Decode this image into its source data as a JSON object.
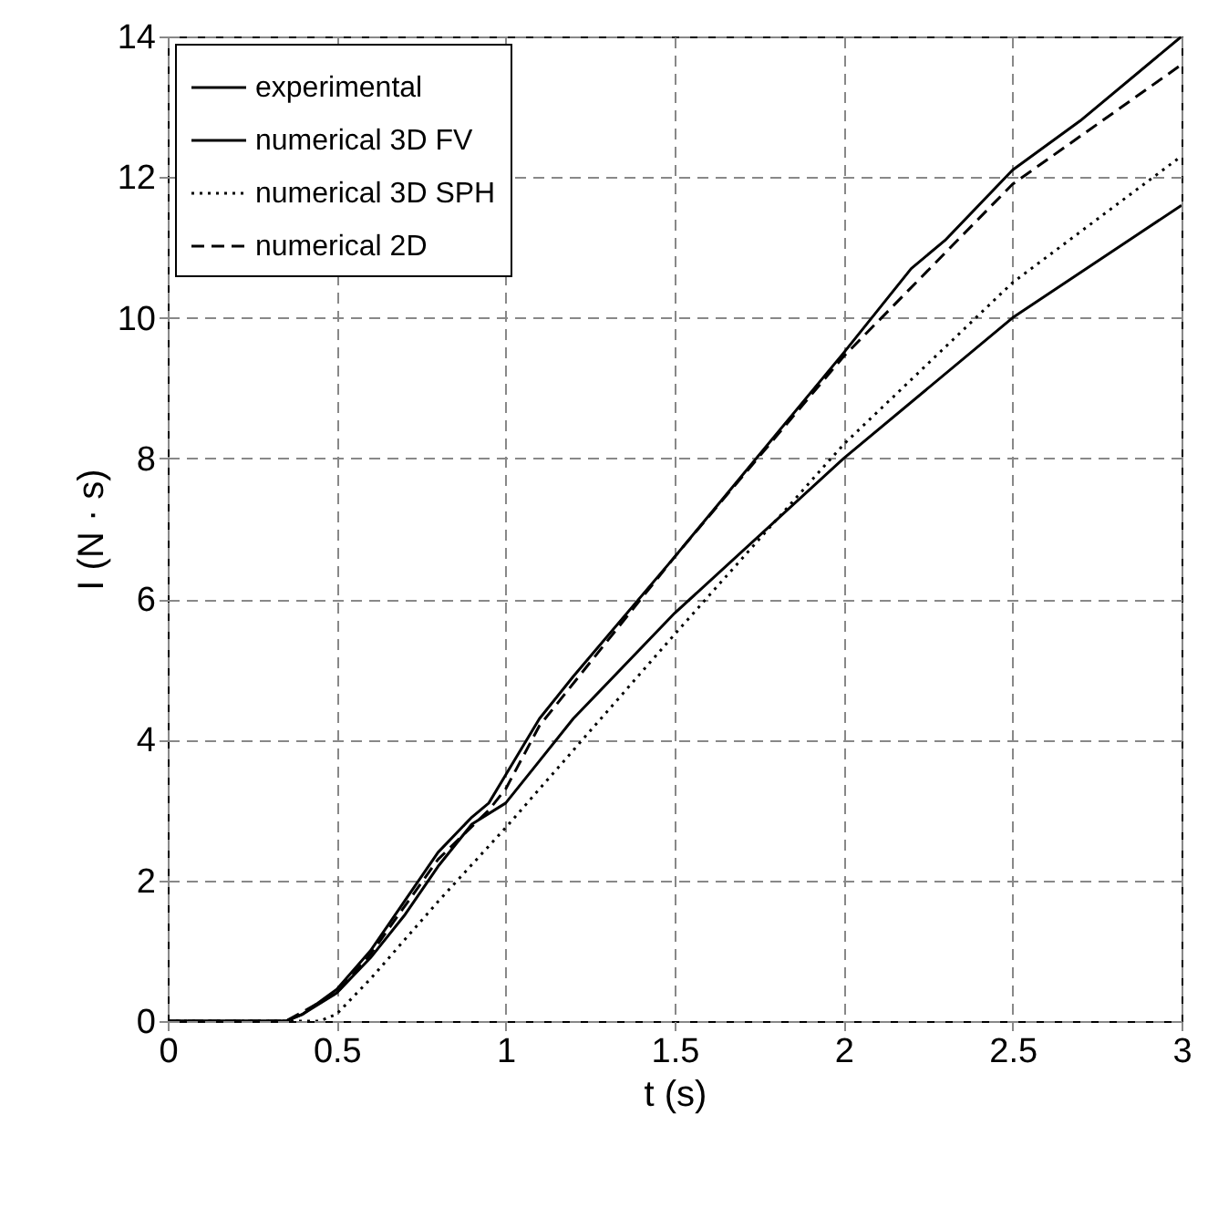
{
  "chart_data": {
    "type": "line",
    "xlabel": "t (s)",
    "ylabel": "I (N · s)",
    "xlim": [
      0,
      3
    ],
    "xticks": [
      0,
      0.5,
      1,
      1.5,
      2,
      2.5,
      3
    ],
    "ylim": [
      0,
      14
    ],
    "yticks": [
      0,
      2,
      4,
      6,
      8,
      10,
      12,
      14
    ],
    "grid": true,
    "legend": "top left",
    "series": [
      {
        "name": "experimental",
        "color": "#000000",
        "line_style": "solid",
        "x": [
          0,
          0.35,
          0.4,
          0.5,
          0.6,
          0.7,
          0.8,
          0.9,
          1.0,
          1.1,
          1.2,
          1.5,
          2.0,
          2.5,
          3.0
        ],
        "values": [
          0,
          0,
          0.1,
          0.4,
          0.9,
          1.5,
          2.2,
          2.8,
          3.1,
          3.7,
          4.3,
          5.8,
          8.0,
          10.0,
          11.6
        ]
      },
      {
        "name": "numerical 3D FV",
        "color": "#000000",
        "line_style": "solid",
        "x": [
          0,
          0.35,
          0.4,
          0.5,
          0.6,
          0.7,
          0.8,
          0.9,
          0.95,
          1.0,
          1.1,
          1.2,
          1.5,
          2.0,
          2.1,
          2.2,
          2.3,
          2.5,
          2.7,
          3.0
        ],
        "values": [
          0,
          0,
          0.1,
          0.45,
          1.0,
          1.7,
          2.4,
          2.9,
          3.1,
          3.5,
          4.3,
          4.9,
          6.6,
          9.5,
          10.1,
          10.7,
          11.1,
          12.1,
          12.8,
          14.0
        ]
      },
      {
        "name": "numerical 3D SPH",
        "color": "#000000",
        "line_style": "dotted",
        "x": [
          0,
          0.45,
          0.5,
          0.6,
          0.8,
          1.0,
          1.5,
          2.0,
          2.5,
          3.0
        ],
        "values": [
          0,
          0,
          0.1,
          0.6,
          1.7,
          2.75,
          5.5,
          8.2,
          10.5,
          12.3
        ]
      },
      {
        "name": "numerical 2D",
        "color": "#000000",
        "line_style": "dashed",
        "x": [
          0,
          0.35,
          0.5,
          0.6,
          0.8,
          0.95,
          1.0,
          1.1,
          1.5,
          2.0,
          2.5,
          3.0
        ],
        "values": [
          0,
          0,
          0.4,
          0.95,
          2.3,
          3.0,
          3.3,
          4.2,
          6.6,
          9.45,
          11.9,
          13.6
        ]
      }
    ]
  }
}
